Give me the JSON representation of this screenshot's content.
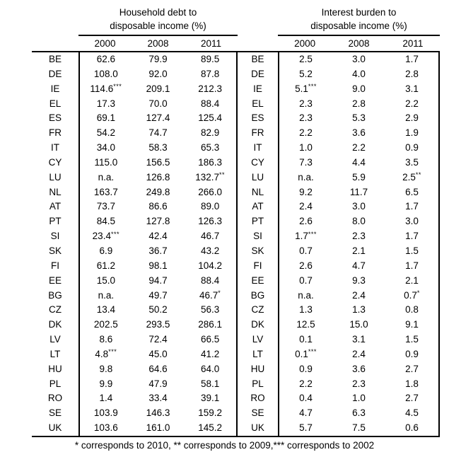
{
  "chart_data": {
    "type": "table",
    "groups": [
      {
        "id": "household_debt",
        "title_line1": "Household debt to",
        "title_line2": "disposable income (%)",
        "years": [
          "2000",
          "2008",
          "2011"
        ]
      },
      {
        "id": "interest_burden",
        "title_line1": "Interest burden to",
        "title_line2": "disposable income (%)",
        "years": [
          "2000",
          "2008",
          "2011"
        ]
      }
    ],
    "rows": [
      {
        "country": "BE",
        "household_debt": [
          "62.6",
          "79.9",
          "89.5"
        ],
        "interest_burden": [
          "2.5",
          "3.0",
          "1.7"
        ]
      },
      {
        "country": "DE",
        "household_debt": [
          "108.0",
          "92.0",
          "87.8"
        ],
        "interest_burden": [
          "5.2",
          "4.0",
          "2.8"
        ]
      },
      {
        "country": "IE",
        "household_debt": [
          "114.6***",
          "209.1",
          "212.3"
        ],
        "interest_burden": [
          "5.1***",
          "9.0",
          "3.1"
        ]
      },
      {
        "country": "EL",
        "household_debt": [
          "17.3",
          "70.0",
          "88.4"
        ],
        "interest_burden": [
          "2.3",
          "2.8",
          "2.2"
        ]
      },
      {
        "country": "ES",
        "household_debt": [
          "69.1",
          "127.4",
          "125.4"
        ],
        "interest_burden": [
          "2.3",
          "5.3",
          "2.9"
        ]
      },
      {
        "country": "FR",
        "household_debt": [
          "54.2",
          "74.7",
          "82.9"
        ],
        "interest_burden": [
          "2.2",
          "3.6",
          "1.9"
        ]
      },
      {
        "country": "IT",
        "household_debt": [
          "34.0",
          "58.3",
          "65.3"
        ],
        "interest_burden": [
          "1.0",
          "2.2",
          "0.9"
        ]
      },
      {
        "country": "CY",
        "household_debt": [
          "115.0",
          "156.5",
          "186.3"
        ],
        "interest_burden": [
          "7.3",
          "4.4",
          "3.5"
        ]
      },
      {
        "country": "LU",
        "household_debt": [
          "n.a.",
          "126.8",
          "132.7**"
        ],
        "interest_burden": [
          "n.a.",
          "5.9",
          "2.5**"
        ]
      },
      {
        "country": "NL",
        "household_debt": [
          "163.7",
          "249.8",
          "266.0"
        ],
        "interest_burden": [
          "9.2",
          "11.7",
          "6.5"
        ]
      },
      {
        "country": "AT",
        "household_debt": [
          "73.7",
          "86.6",
          "89.0"
        ],
        "interest_burden": [
          "2.4",
          "3.0",
          "1.7"
        ]
      },
      {
        "country": "PT",
        "household_debt": [
          "84.5",
          "127.8",
          "126.3"
        ],
        "interest_burden": [
          "2.6",
          "8.0",
          "3.0"
        ]
      },
      {
        "country": "SI",
        "household_debt": [
          "23.4***",
          "42.4",
          "46.7"
        ],
        "interest_burden": [
          "1.7***",
          "2.3",
          "1.7"
        ]
      },
      {
        "country": "SK",
        "household_debt": [
          "6.9",
          "36.7",
          "43.2"
        ],
        "interest_burden": [
          "0.7",
          "2.1",
          "1.5"
        ]
      },
      {
        "country": "FI",
        "household_debt": [
          "61.2",
          "98.1",
          "104.2"
        ],
        "interest_burden": [
          "2.6",
          "4.7",
          "1.7"
        ]
      },
      {
        "country": "EE",
        "household_debt": [
          "15.0",
          "94.7",
          "88.4"
        ],
        "interest_burden": [
          "0.7",
          "9.3",
          "2.1"
        ]
      },
      {
        "country": "BG",
        "household_debt": [
          "n.a.",
          "49.7",
          "46.7*"
        ],
        "interest_burden": [
          "n.a.",
          "2.4",
          "0.7*"
        ]
      },
      {
        "country": "CZ",
        "household_debt": [
          "13.4",
          "50.2",
          "56.3"
        ],
        "interest_burden": [
          "1.3",
          "1.3",
          "0.8"
        ]
      },
      {
        "country": "DK",
        "household_debt": [
          "202.5",
          "293.5",
          "286.1"
        ],
        "interest_burden": [
          "12.5",
          "15.0",
          "9.1"
        ]
      },
      {
        "country": "LV",
        "household_debt": [
          "8.6",
          "72.4",
          "66.5"
        ],
        "interest_burden": [
          "0.1",
          "3.1",
          "1.5"
        ]
      },
      {
        "country": "LT",
        "household_debt": [
          "4.8***",
          "45.0",
          "41.2"
        ],
        "interest_burden": [
          "0.1***",
          "2.4",
          "0.9"
        ]
      },
      {
        "country": "HU",
        "household_debt": [
          "9.8",
          "64.6",
          "64.0"
        ],
        "interest_burden": [
          "0.9",
          "3.6",
          "2.7"
        ]
      },
      {
        "country": "PL",
        "household_debt": [
          "9.9",
          "47.9",
          "58.1"
        ],
        "interest_burden": [
          "2.2",
          "2.3",
          "1.8"
        ]
      },
      {
        "country": "RO",
        "household_debt": [
          "1.4",
          "33.4",
          "39.1"
        ],
        "interest_burden": [
          "0.4",
          "1.0",
          "2.7"
        ]
      },
      {
        "country": "SE",
        "household_debt": [
          "103.9",
          "146.3",
          "159.2"
        ],
        "interest_burden": [
          "4.7",
          "6.3",
          "4.5"
        ]
      },
      {
        "country": "UK",
        "household_debt": [
          "103.6",
          "161.0",
          "145.2"
        ],
        "interest_burden": [
          "5.7",
          "7.5",
          "0.6"
        ]
      }
    ],
    "footnote": "* corresponds to 2010, ** corresponds to 2009,*** corresponds to 2002",
    "notes": {
      "*": "corresponds to 2010",
      "**": "corresponds to 2009",
      "***": "corresponds to 2002"
    }
  }
}
